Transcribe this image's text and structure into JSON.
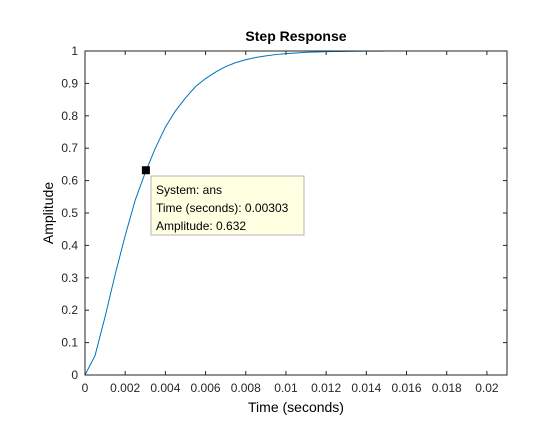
{
  "colors": {
    "background": "#ffffff",
    "axes_box": "#262626",
    "line": "#0072bd",
    "datatip_fill": "#ffffe1",
    "datatip_border": "#b4b4b4",
    "marker": "#000000"
  },
  "chart_data": {
    "type": "line",
    "title": "Step Response",
    "xlabel": "Time (seconds)",
    "ylabel": "Amplitude",
    "xlim": [
      0,
      0.021
    ],
    "ylim": [
      0,
      1
    ],
    "grid": false,
    "xticks": [
      0,
      0.002,
      0.004,
      0.006,
      0.008,
      0.01,
      0.012,
      0.014,
      0.016,
      0.018,
      0.02
    ],
    "xtick_labels": [
      "0",
      "0.002",
      "0.004",
      "0.006",
      "0.008",
      "0.01",
      "0.012",
      "0.014",
      "0.016",
      "0.018",
      "0.02"
    ],
    "yticks": [
      0,
      0.1,
      0.2,
      0.3,
      0.4,
      0.5,
      0.6,
      0.7,
      0.8,
      0.9,
      1
    ],
    "ytick_labels": [
      "0",
      "0.1",
      "0.2",
      "0.3",
      "0.4",
      "0.5",
      "0.6",
      "0.7",
      "0.8",
      "0.9",
      "1"
    ],
    "series": [
      {
        "x": [
          0,
          0.0005,
          0.001,
          0.0015,
          0.002,
          0.0025,
          0.003,
          0.0035,
          0.004,
          0.0045,
          0.005,
          0.0055,
          0.006,
          0.0065,
          0.007,
          0.0075,
          0.008,
          0.0085,
          0.009,
          0.0095,
          0.01,
          0.0105,
          0.011,
          0.0115,
          0.012,
          0.0125,
          0.013,
          0.0135,
          0.014,
          0.0145,
          0.015,
          0.0155,
          0.016,
          0.0165,
          0.017,
          0.0175,
          0.018,
          0.0185,
          0.019,
          0.0195,
          0.02,
          0.0205,
          0.021
        ],
        "y": [
          0,
          0.06,
          0.18,
          0.31,
          0.43,
          0.54,
          0.625,
          0.7,
          0.765,
          0.815,
          0.855,
          0.89,
          0.915,
          0.935,
          0.952,
          0.964,
          0.973,
          0.98,
          0.985,
          0.989,
          0.992,
          0.994,
          0.996,
          0.997,
          0.998,
          0.9985,
          0.999,
          0.9993,
          0.9995,
          0.9997,
          0.9998,
          0.9999,
          1,
          1,
          1,
          1,
          1,
          1,
          1,
          1,
          1,
          1,
          1
        ]
      }
    ],
    "reference_line": {
      "y": 1,
      "style": "dotted"
    },
    "datatip": {
      "x": 0.00303,
      "y": 0.632,
      "lines": [
        "System: ans",
        "Time (seconds): 0.00303",
        "Amplitude: 0.632"
      ]
    }
  }
}
